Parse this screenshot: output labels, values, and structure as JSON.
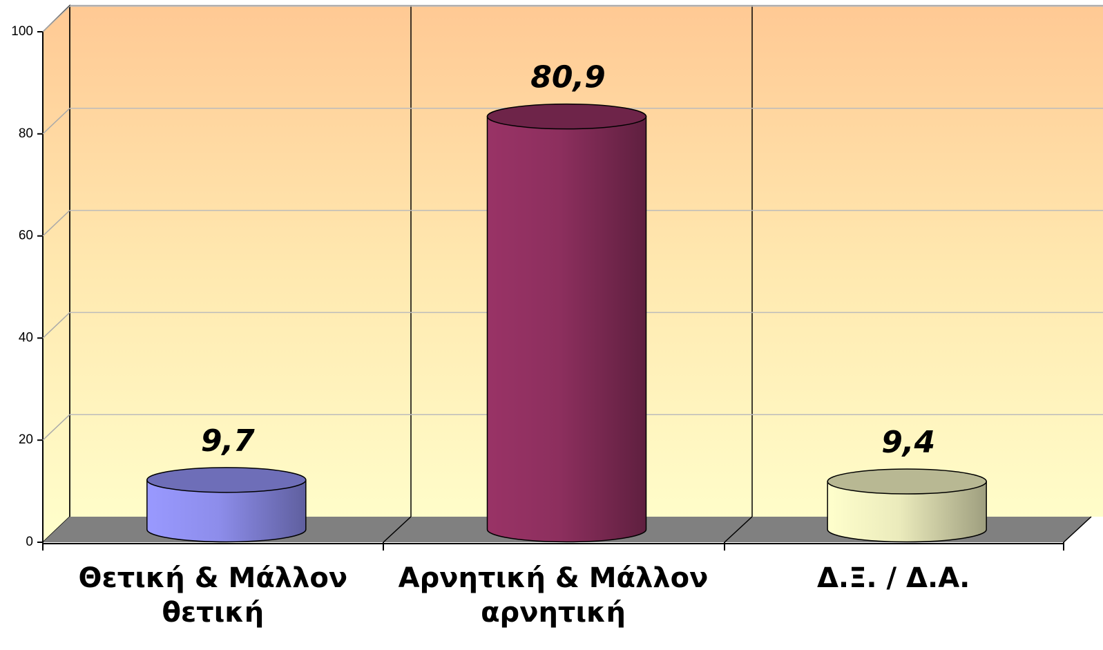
{
  "chart_data": {
    "type": "bar",
    "categories": [
      "Θετική & Μάλλον θετική",
      "Αρνητική & Μάλλον αρνητική",
      "Δ.Ξ. / Δ.Α."
    ],
    "values": [
      9.7,
      80.9,
      9.4
    ],
    "value_labels": [
      "9,7",
      "80,9",
      "9,4"
    ],
    "colors": [
      "#9999ff",
      "#993366",
      "#ffffcc"
    ],
    "ylim": [
      0,
      100
    ],
    "yticks": [
      0,
      20,
      40,
      60,
      80,
      100
    ],
    "grid": true
  }
}
